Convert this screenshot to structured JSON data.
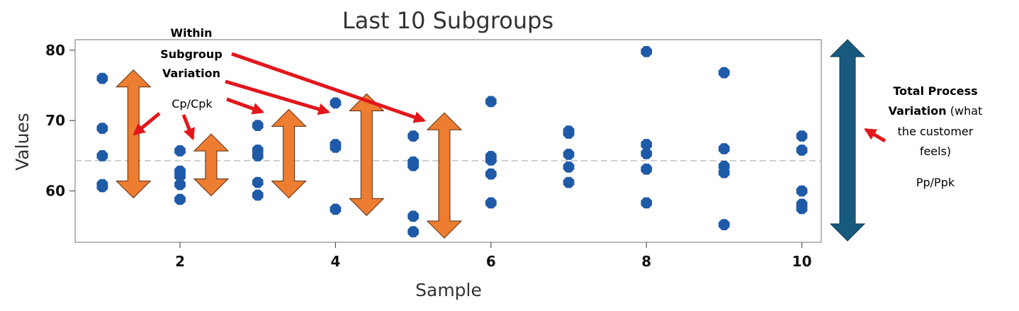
{
  "chart_data": {
    "type": "scatter",
    "title": "Last 10 Subgroups",
    "xlabel": "Sample",
    "ylabel": "Values",
    "xlim": [
      0.65,
      10.25
    ],
    "ylim": [
      52.7,
      81.5
    ],
    "x_ticks": [
      2,
      4,
      6,
      8,
      10
    ],
    "y_ticks": [
      60,
      70,
      80
    ],
    "grid": false,
    "mean_line": 64.3,
    "point_color": "#1F5AA8",
    "points": [
      {
        "x": 1,
        "y": 76.0
      },
      {
        "x": 1,
        "y": 68.9
      },
      {
        "x": 1,
        "y": 65.0
      },
      {
        "x": 1,
        "y": 60.9
      },
      {
        "x": 1,
        "y": 60.6
      },
      {
        "x": 2,
        "y": 65.7
      },
      {
        "x": 2,
        "y": 62.8
      },
      {
        "x": 2,
        "y": 62.1
      },
      {
        "x": 2,
        "y": 60.9
      },
      {
        "x": 2,
        "y": 58.8
      },
      {
        "x": 3,
        "y": 69.3
      },
      {
        "x": 3,
        "y": 65.8
      },
      {
        "x": 3,
        "y": 65.0
      },
      {
        "x": 3,
        "y": 61.2
      },
      {
        "x": 3,
        "y": 59.4
      },
      {
        "x": 4,
        "y": 72.5
      },
      {
        "x": 4,
        "y": 66.6
      },
      {
        "x": 4,
        "y": 66.2
      },
      {
        "x": 4,
        "y": 57.4
      },
      {
        "x": 5,
        "y": 67.8
      },
      {
        "x": 5,
        "y": 64.1
      },
      {
        "x": 5,
        "y": 63.6
      },
      {
        "x": 5,
        "y": 56.4
      },
      {
        "x": 5,
        "y": 54.2
      },
      {
        "x": 6,
        "y": 72.7
      },
      {
        "x": 6,
        "y": 64.9
      },
      {
        "x": 6,
        "y": 64.4
      },
      {
        "x": 6,
        "y": 62.4
      },
      {
        "x": 6,
        "y": 58.3
      },
      {
        "x": 7,
        "y": 68.5
      },
      {
        "x": 7,
        "y": 68.2
      },
      {
        "x": 7,
        "y": 65.2
      },
      {
        "x": 7,
        "y": 63.4
      },
      {
        "x": 7,
        "y": 61.2
      },
      {
        "x": 8,
        "y": 79.8
      },
      {
        "x": 8,
        "y": 66.6
      },
      {
        "x": 8,
        "y": 65.3
      },
      {
        "x": 8,
        "y": 63.1
      },
      {
        "x": 8,
        "y": 58.3
      },
      {
        "x": 9,
        "y": 76.8
      },
      {
        "x": 9,
        "y": 66.0
      },
      {
        "x": 9,
        "y": 63.5
      },
      {
        "x": 9,
        "y": 62.6
      },
      {
        "x": 9,
        "y": 55.2
      },
      {
        "x": 10,
        "y": 67.8
      },
      {
        "x": 10,
        "y": 65.8
      },
      {
        "x": 10,
        "y": 60.0
      },
      {
        "x": 10,
        "y": 58.1
      },
      {
        "x": 10,
        "y": 57.5
      }
    ],
    "within_range_arrows": [
      {
        "x": 1.4,
        "y_low": 59.0,
        "y_high": 77.2
      },
      {
        "x": 2.4,
        "y_low": 59.3,
        "y_high": 68.1
      },
      {
        "x": 3.4,
        "y_low": 59.0,
        "y_high": 71.6
      },
      {
        "x": 4.4,
        "y_low": 56.5,
        "y_high": 73.8
      },
      {
        "x": 5.4,
        "y_low": 53.3,
        "y_high": 71.1
      }
    ],
    "within_arrow_color": "#ED7D31",
    "total_arrow": {
      "y_low": 52.9,
      "y_high": 81.5,
      "color": "#185A7D"
    }
  },
  "annotations": {
    "within_lines": [
      "Within",
      "Subgroup",
      "Variation"
    ],
    "cp_cpk": "Cp/Cpk",
    "total_bold_1": "Total Process",
    "total_bold_2": "Variation",
    "total_rest_2": " (what",
    "total_line_3": "the customer",
    "total_line_4": "feels)",
    "pp_ppk": "Pp/Ppk",
    "pointer_color": "#E3161B"
  }
}
